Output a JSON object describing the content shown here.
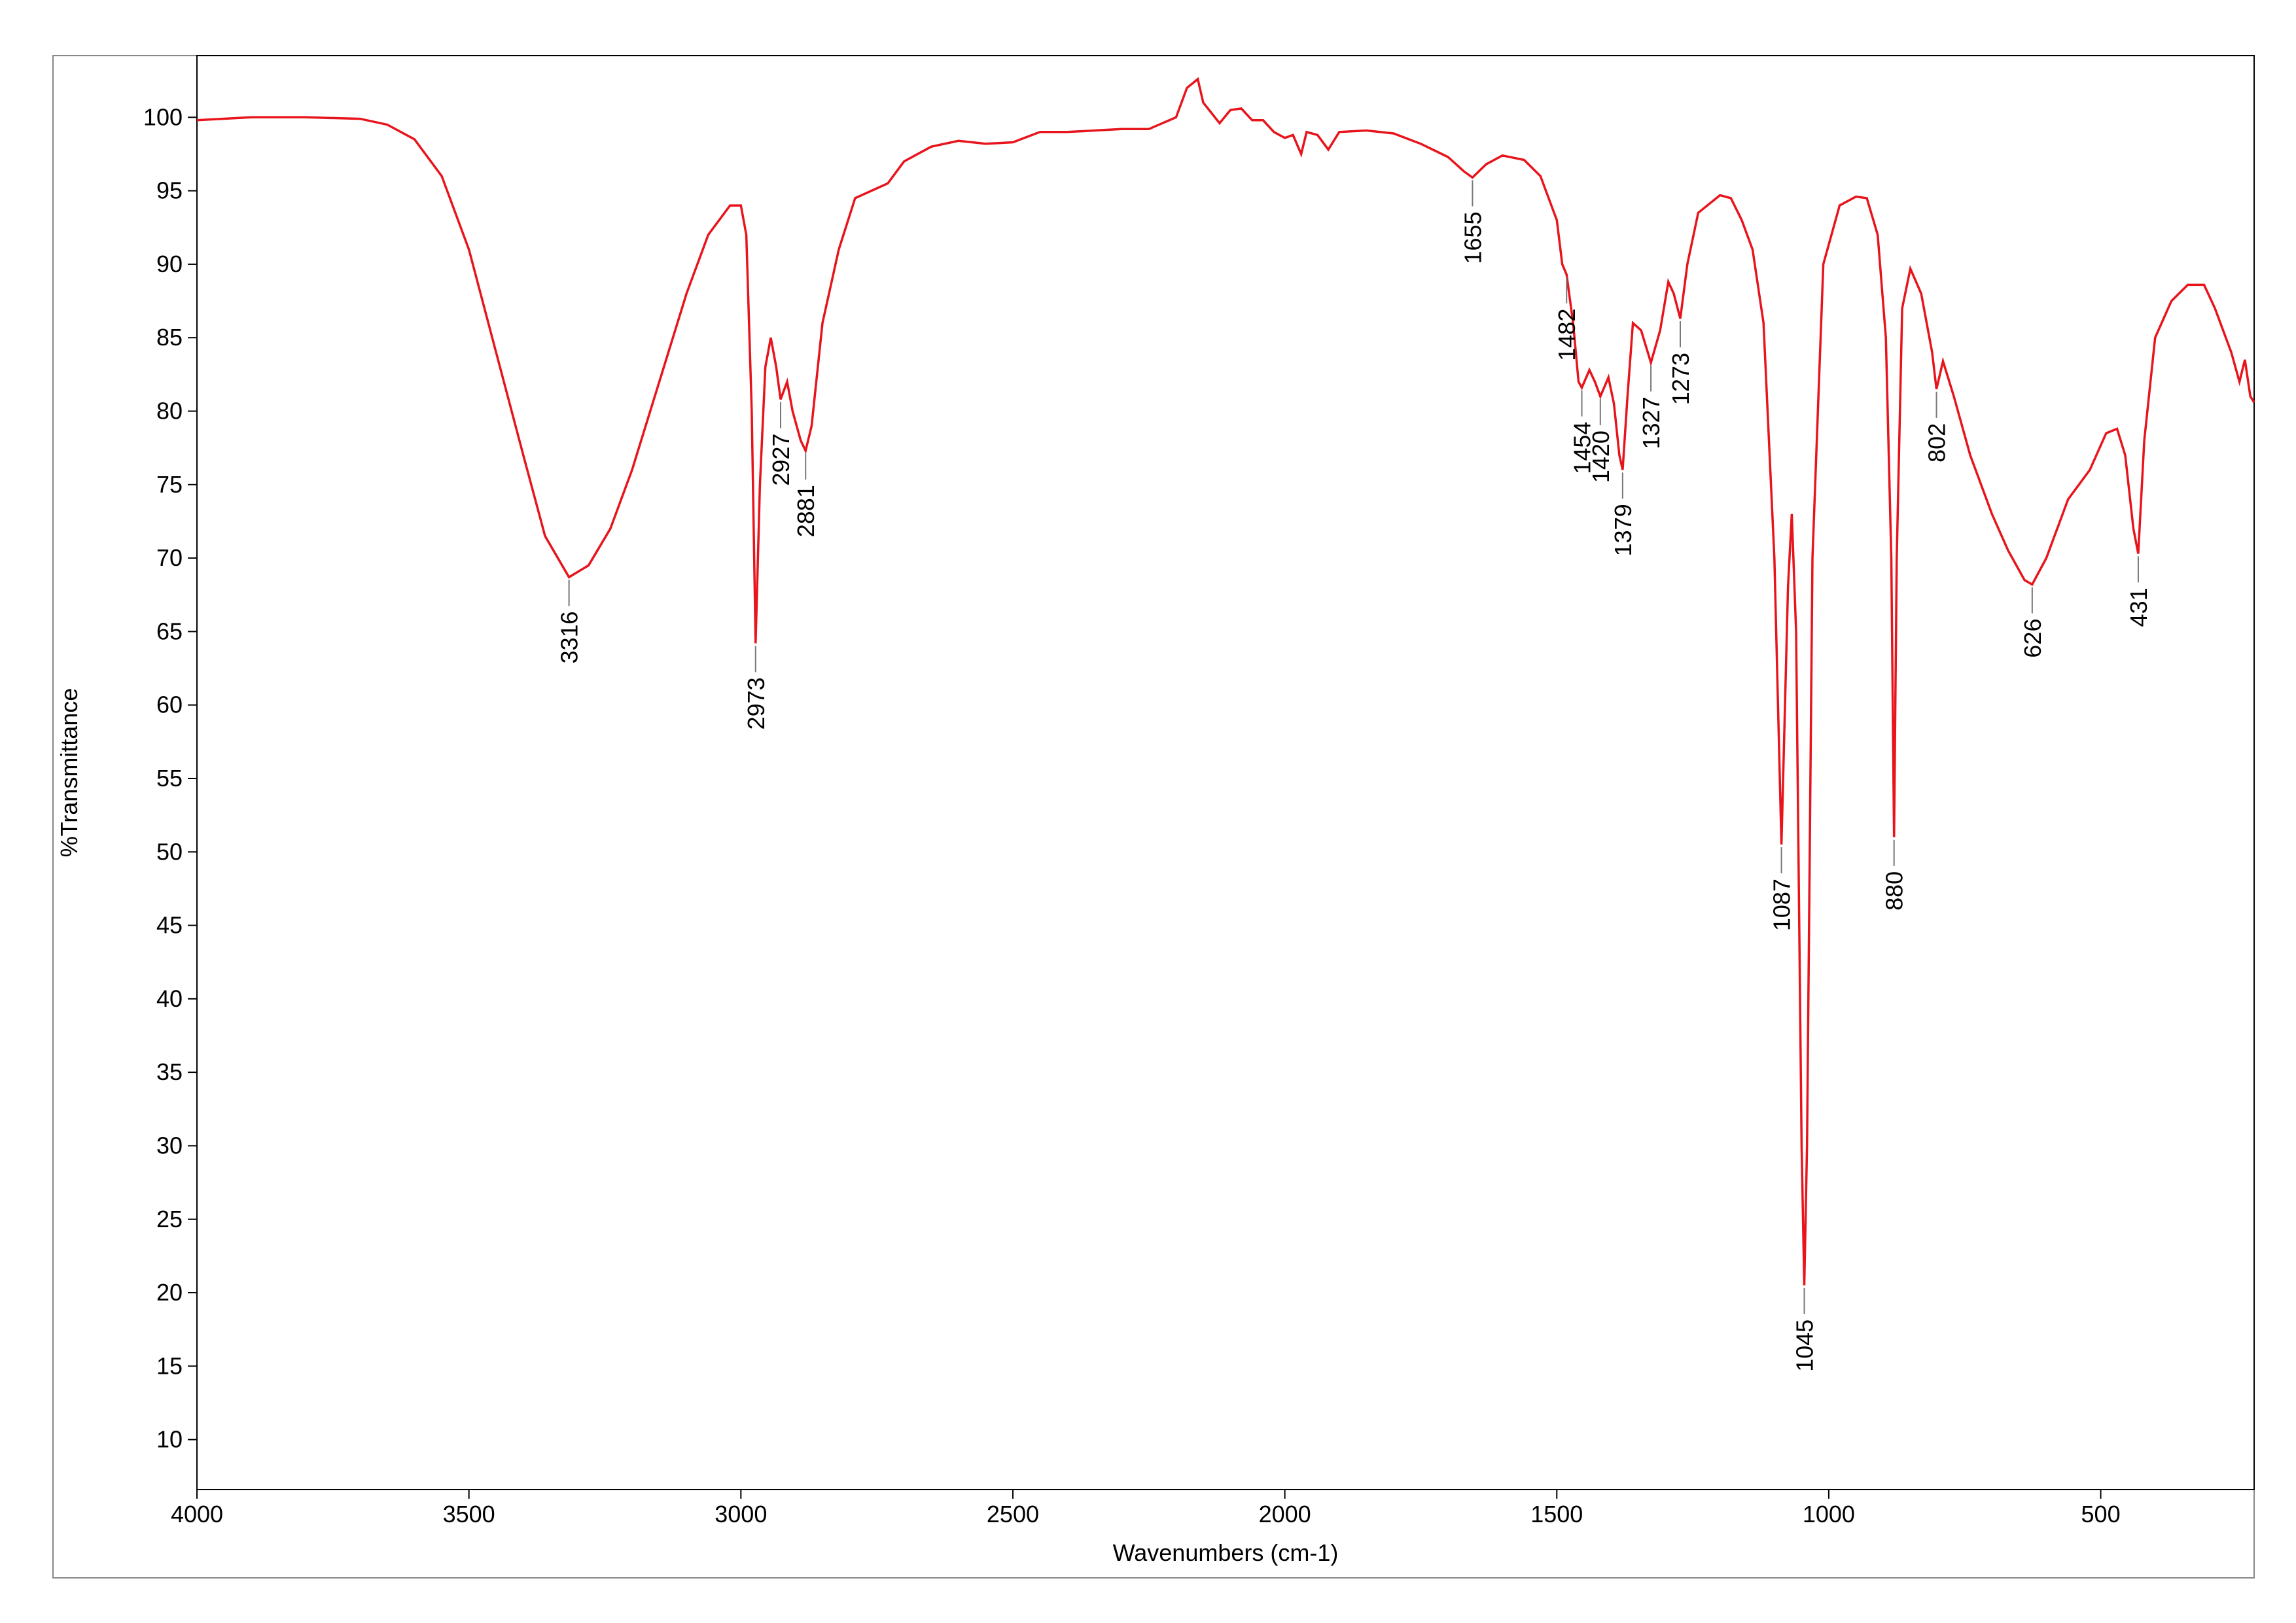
{
  "chart_data": {
    "type": "line",
    "xlabel": "Wavenumbers (cm-1)",
    "ylabel": "%Transmittance",
    "color": "#e8141c",
    "xlim": [
      4000,
      218
    ],
    "ylim": [
      6.6,
      104.2
    ],
    "xticks": [
      4000,
      3500,
      3000,
      2500,
      2000,
      1500,
      1000,
      500
    ],
    "yticks": [
      10,
      15,
      20,
      25,
      30,
      35,
      40,
      45,
      50,
      55,
      60,
      65,
      70,
      75,
      80,
      85,
      90,
      95,
      100
    ],
    "x": [
      4000,
      3900,
      3800,
      3700,
      3650,
      3600,
      3550,
      3500,
      3450,
      3400,
      3360,
      3316,
      3280,
      3240,
      3200,
      3150,
      3100,
      3060,
      3020,
      3000,
      2990,
      2980,
      2973,
      2965,
      2955,
      2945,
      2935,
      2927,
      2915,
      2905,
      2890,
      2881,
      2870,
      2850,
      2820,
      2790,
      2760,
      2730,
      2700,
      2650,
      2600,
      2550,
      2500,
      2450,
      2400,
      2350,
      2300,
      2250,
      2200,
      2180,
      2160,
      2150,
      2120,
      2100,
      2080,
      2060,
      2040,
      2020,
      2000,
      1985,
      1970,
      1960,
      1940,
      1920,
      1900,
      1850,
      1800,
      1750,
      1700,
      1670,
      1655,
      1630,
      1600,
      1560,
      1530,
      1500,
      1490,
      1482,
      1470,
      1460,
      1454,
      1440,
      1430,
      1420,
      1405,
      1395,
      1385,
      1379,
      1370,
      1360,
      1345,
      1327,
      1310,
      1295,
      1285,
      1273,
      1260,
      1240,
      1200,
      1180,
      1160,
      1140,
      1120,
      1100,
      1087,
      1075,
      1068,
      1060,
      1050,
      1045,
      1040,
      1030,
      1010,
      980,
      950,
      930,
      910,
      895,
      885,
      880,
      875,
      865,
      850,
      830,
      810,
      802,
      790,
      770,
      740,
      700,
      670,
      640,
      626,
      600,
      560,
      520,
      490,
      470,
      455,
      440,
      431,
      420,
      400,
      370,
      340,
      310,
      290,
      260,
      245,
      235,
      225,
      218
    ],
    "values": [
      99.8,
      100,
      100,
      99.9,
      99.5,
      98.5,
      96,
      91,
      84,
      77,
      71.5,
      68.7,
      69.5,
      72,
      76,
      82,
      88,
      92,
      94,
      94,
      92,
      80,
      64.2,
      75,
      83,
      85,
      83,
      80.8,
      82,
      80,
      78,
      77.3,
      79,
      86,
      91,
      94.5,
      95,
      95.5,
      97,
      98,
      98.4,
      98.2,
      98.3,
      99,
      99,
      99.1,
      99.2,
      99.2,
      100,
      102,
      102.6,
      101,
      99.6,
      100.5,
      100.6,
      99.8,
      99.8,
      99,
      98.6,
      98.8,
      97.5,
      99,
      98.8,
      97.8,
      99,
      99.1,
      98.9,
      98.2,
      97.3,
      96.3,
      95.9,
      96.8,
      97.4,
      97.1,
      96,
      93,
      90,
      89.3,
      86,
      82,
      81.6,
      82.8,
      82,
      81,
      82.3,
      80.5,
      77,
      76,
      81,
      86,
      85.5,
      83.3,
      85.5,
      88.8,
      88,
      86.3,
      90,
      93.5,
      94.7,
      94.5,
      93,
      91,
      86,
      70,
      50.5,
      68,
      73,
      65,
      30,
      20.5,
      30,
      70,
      90,
      94,
      94.6,
      94.5,
      92,
      85,
      70,
      51,
      70,
      87,
      89.7,
      88,
      84,
      81.5,
      83.4,
      81,
      77,
      73,
      70.5,
      68.5,
      68.2,
      70,
      74,
      76,
      78.5,
      78.8,
      77,
      72,
      70.3,
      78,
      85,
      87.5,
      88.6,
      88.6,
      87,
      84,
      82,
      83.5,
      81,
      80.6
    ],
    "peaks": {
      "x": [
        3316,
        2973,
        2927,
        2881,
        1655,
        1482,
        1454,
        1420,
        1379,
        1327,
        1273,
        1087,
        1045,
        880,
        802,
        626,
        431
      ],
      "y": [
        68.7,
        64.2,
        80.8,
        77.3,
        95.9,
        89.3,
        81.6,
        81,
        76,
        83.3,
        86.3,
        50.5,
        20.5,
        51,
        81.5,
        68.2,
        70.3
      ]
    }
  }
}
